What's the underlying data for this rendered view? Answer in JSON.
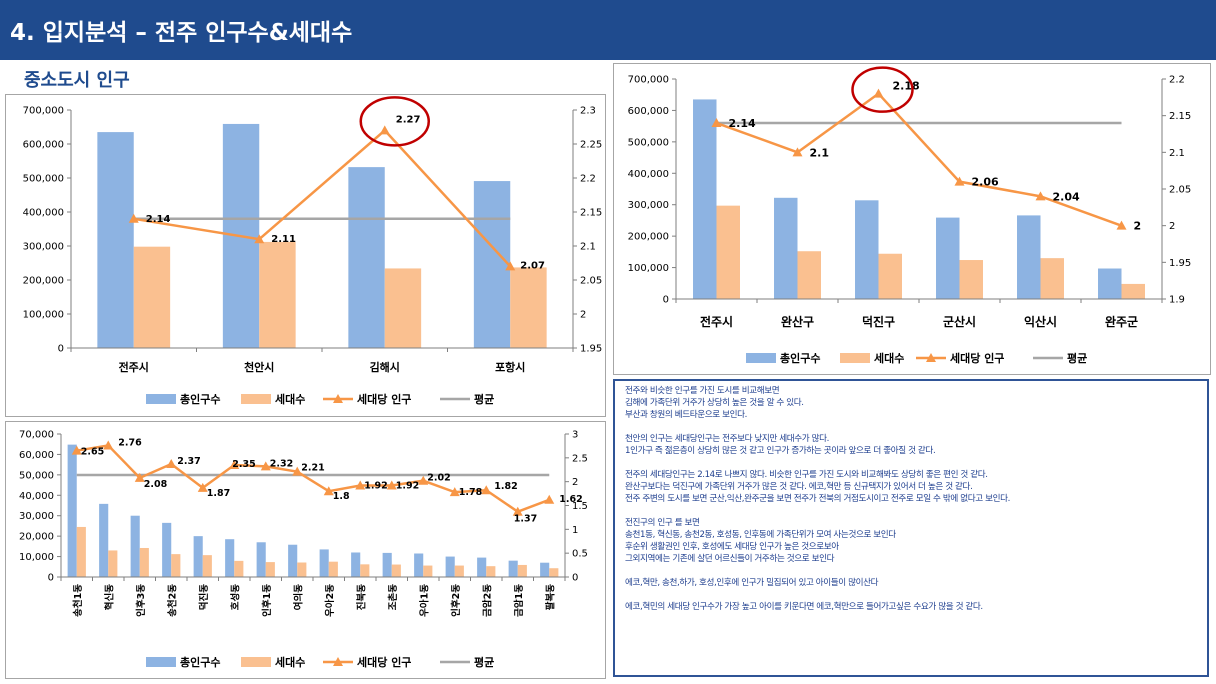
{
  "header": {
    "title": "4. 입지분석 – 전주 인구수&세대수"
  },
  "section": {
    "subtitle": "중소도시 인구"
  },
  "colors": {
    "header_bg": "#1f4b8e",
    "total_pop": "#8db3e2",
    "households": "#fac090",
    "per_household": "#f79646",
    "average": "#a6a6a6",
    "highlight": "#c00000"
  },
  "chart_data": [
    {
      "type": "bar",
      "categories": [
        "전주시",
        "천안시",
        "김해시",
        "포항시"
      ],
      "series": [
        {
          "name": "총인구수",
          "kind": "bar",
          "axis": "left",
          "values": [
            635000,
            659000,
            532000,
            491000
          ]
        },
        {
          "name": "세대수",
          "kind": "bar",
          "axis": "left",
          "values": [
            298000,
            312000,
            234000,
            237000
          ]
        },
        {
          "name": "세대당 인구",
          "kind": "line",
          "axis": "right",
          "values": [
            2.14,
            2.11,
            2.27,
            2.07
          ]
        },
        {
          "name": "평균",
          "kind": "line",
          "axis": "right",
          "values": [
            2.14,
            2.14,
            2.14,
            2.14
          ]
        }
      ],
      "data_labels": [
        "2.14",
        "2.11",
        "2.27",
        "2.07"
      ],
      "ylim": [
        0,
        700000
      ],
      "y_ticks": [
        "0",
        "100,000",
        "200,000",
        "300,000",
        "400,000",
        "500,000",
        "600,000",
        "700,000"
      ],
      "y2lim": [
        1.95,
        2.3
      ],
      "y2_ticks": [
        "1.95",
        "2",
        "2.05",
        "2.1",
        "2.15",
        "2.2",
        "2.25",
        "2.3"
      ],
      "highlight_index": 2,
      "legend_position": "bottom"
    },
    {
      "type": "bar",
      "categories": [
        "전주시",
        "완산구",
        "덕진구",
        "군산시",
        "익산시",
        "완주군"
      ],
      "series": [
        {
          "name": "총인구수",
          "kind": "bar",
          "axis": "left",
          "values": [
            635000,
            322000,
            314000,
            259000,
            266000,
            97000
          ]
        },
        {
          "name": "세대수",
          "kind": "bar",
          "axis": "left",
          "values": [
            297000,
            152000,
            144000,
            124000,
            130000,
            48000
          ]
        },
        {
          "name": "세대당 인구",
          "kind": "line",
          "axis": "right",
          "values": [
            2.14,
            2.1,
            2.18,
            2.06,
            2.04,
            2.0
          ]
        },
        {
          "name": "평균",
          "kind": "line",
          "axis": "right",
          "values": [
            2.14,
            2.14,
            2.14,
            2.14,
            2.14,
            2.14
          ]
        }
      ],
      "data_labels": [
        "2.14",
        "2.1",
        "2.18",
        "2.06",
        "2.04",
        "2"
      ],
      "ylim": [
        0,
        700000
      ],
      "y_ticks": [
        "0",
        "100,000",
        "200,000",
        "300,000",
        "400,000",
        "500,000",
        "600,000",
        "700,000"
      ],
      "y2lim": [
        1.9,
        2.2
      ],
      "y2_ticks": [
        "1.9",
        "1.95",
        "2",
        "2.05",
        "2.1",
        "2.15",
        "2.2"
      ],
      "highlight_index": 2,
      "legend_position": "bottom"
    },
    {
      "type": "bar",
      "categories": [
        "송천1동",
        "혁신동",
        "인후3동",
        "송천2동",
        "덕진동",
        "호성동",
        "인후1동",
        "여의동",
        "우아2동",
        "진북동",
        "조촌동",
        "우아1동",
        "인후2동",
        "금암2동",
        "금암1동",
        "팔복동"
      ],
      "series": [
        {
          "name": "총인구수",
          "kind": "bar",
          "axis": "left",
          "values": [
            64800,
            35800,
            30000,
            26500,
            20000,
            18500,
            17000,
            15800,
            13500,
            12000,
            11800,
            11500,
            10000,
            9500,
            8000,
            7000
          ]
        },
        {
          "name": "세대수",
          "kind": "bar",
          "axis": "left",
          "values": [
            24500,
            13000,
            14200,
            11200,
            10700,
            7900,
            7300,
            7100,
            7500,
            6200,
            6100,
            5600,
            5600,
            5300,
            5900,
            4300
          ]
        },
        {
          "name": "세대당 인구",
          "kind": "line",
          "axis": "right",
          "values": [
            2.65,
            2.76,
            2.08,
            2.37,
            1.87,
            2.35,
            2.32,
            2.21,
            1.8,
            1.92,
            1.92,
            2.02,
            1.78,
            1.82,
            1.37,
            1.62
          ]
        },
        {
          "name": "평균",
          "kind": "line",
          "axis": "right",
          "values": [
            2.14,
            2.14,
            2.14,
            2.14,
            2.14,
            2.14,
            2.14,
            2.14,
            2.14,
            2.14,
            2.14,
            2.14,
            2.14,
            2.14,
            2.14,
            2.14
          ]
        }
      ],
      "data_labels": [
        "2.65",
        "2.76",
        "2.08",
        "2.37",
        "1.87",
        "2.35",
        "2.32",
        "2.21",
        "1.8",
        "1.92",
        "1.92",
        "2.02",
        "1.78",
        "1.82",
        "1.37",
        "1.62"
      ],
      "ylim": [
        0,
        70000
      ],
      "y_ticks": [
        "0",
        "10,000",
        "20,000",
        "30,000",
        "40,000",
        "50,000",
        "60,000",
        "70,000"
      ],
      "y2lim": [
        0,
        3
      ],
      "y2_ticks": [
        "0",
        "0.5",
        "1",
        "1.5",
        "2",
        "2.5",
        "3"
      ],
      "legend_position": "bottom"
    }
  ],
  "legend": {
    "total": "총인구수",
    "households": "세대수",
    "per_household": "세대당 인구",
    "average": "평균"
  },
  "notes": [
    "전주와 비슷한 인구를 가진 도시를 비교해보면",
    "김해에 가족단위 거주가 상당히 높은 것을 알 수 있다.",
    "부산과 창원의 베드타운으로 보인다.",
    "천안의 인구는 세대당인구는 전주보다 낮지만 세대수가 많다.",
    "1인가구 즉 젊은층이 상당히 많은 것 같고 인구가 증가하는 곳이라 앞으로 더 좋아질 것 같다.",
    "전주의 세대당인구는 2.14로 나쁘지 않다. 비슷한 인구를 가진 도시와 비교해봐도 상당히 좋은 편인 것 같다.",
    "완산구보다는 덕진구에 가족단위 거주가 많은 것 같다. 에코,혁만 등 신규택지가 있어서 더 높은 것 같다.",
    "전주 주변의 도시를 보면 군산,익산,완주군을 보면 전주가 전북의 거점도시이고 전주로 모일 수 밖에 없다고 보인다.",
    "전진구의 인구 를 보면",
    "송천1동, 혁신동, 송천2동, 호성동, 인후동에 가족단위가 모여 사는것으로 보인다",
    "후순위 생활권인 인후, 호성에도 세대당 인구가 높은 것으로보아",
    "그외지역에는 기존에 살던 어르신들이 거주하는 것으로 보인다",
    "에코,혁만, 송천,하가, 호성,인후에 인구가 밀집되어 있고 아이들이 많이산다",
    "에코,혁민의 세대당 인구수가 가장 높고 아이를 키운다면 에코,혁만으로  들어가고싶은 수요가 많을 것 같다."
  ]
}
